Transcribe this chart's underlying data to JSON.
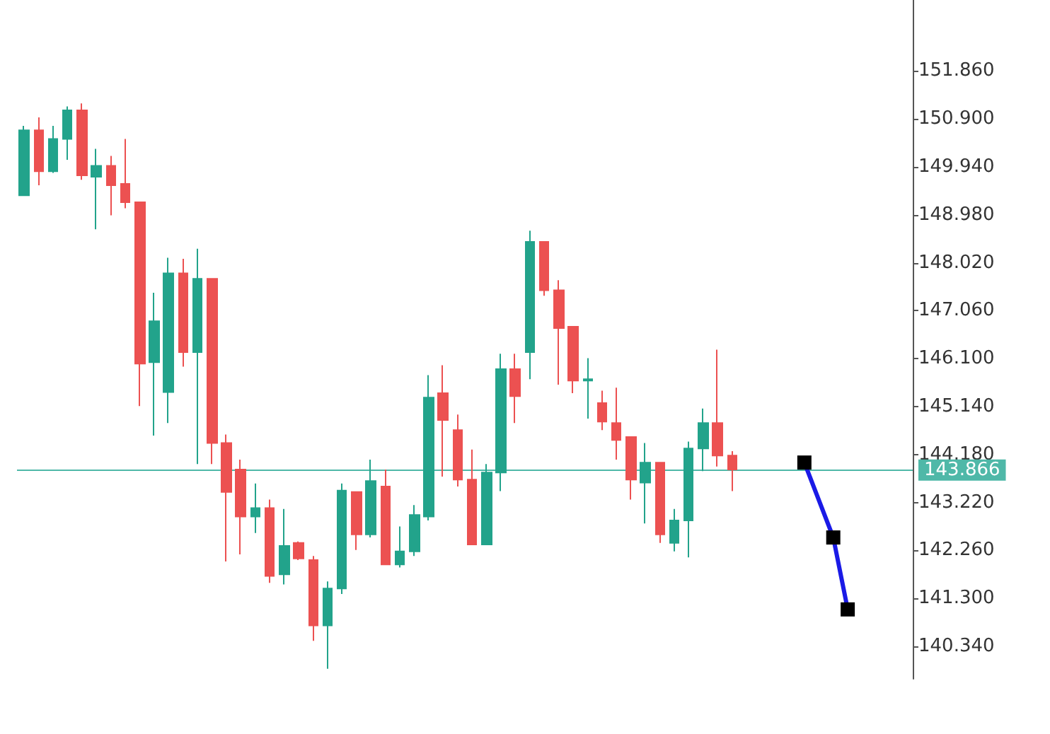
{
  "chart_data": {
    "type": "candlestick",
    "categories": [
      null,
      null,
      null,
      null,
      null,
      null,
      null,
      null,
      null,
      null,
      null,
      null,
      null,
      null,
      null,
      null,
      null,
      null,
      null,
      null,
      null,
      null,
      null,
      null,
      null,
      null,
      null,
      null,
      null,
      null,
      null,
      null,
      null,
      null,
      null,
      null,
      null,
      null,
      null,
      null,
      null,
      null,
      null,
      null,
      null,
      null,
      null,
      null,
      null,
      null,
      null,
      null,
      null,
      null,
      null,
      null,
      null,
      null,
      null,
      null,
      null,
      null
    ],
    "ohlc": [
      [
        149.37,
        150.76,
        149.37,
        150.67
      ],
      [
        150.67,
        150.93,
        149.57,
        149.85
      ],
      [
        149.85,
        150.76,
        149.82,
        150.5
      ],
      [
        150.5,
        151.15,
        150.08,
        151.07
      ],
      [
        151.07,
        151.21,
        149.68,
        149.77
      ],
      [
        149.74,
        150.3,
        148.69,
        149.96
      ],
      [
        149.96,
        150.16,
        148.97,
        149.57
      ],
      [
        149.6,
        150.5,
        149.11,
        149.23
      ],
      [
        149.23,
        149.23,
        145.15,
        146.0
      ],
      [
        146.03,
        147.42,
        144.56,
        146.85
      ],
      [
        145.43,
        148.12,
        144.81,
        147.81
      ],
      [
        147.81,
        148.1,
        145.94,
        146.23
      ],
      [
        146.23,
        148.3,
        143.99,
        147.7
      ],
      [
        147.7,
        147.7,
        143.99,
        144.41
      ],
      [
        144.41,
        144.58,
        142.04,
        143.43
      ],
      [
        143.88,
        144.08,
        142.18,
        142.94
      ],
      [
        142.94,
        143.6,
        142.61,
        143.11
      ],
      [
        143.11,
        143.28,
        141.61,
        141.75
      ],
      [
        141.78,
        143.09,
        141.58,
        142.35
      ],
      [
        142.41,
        142.44,
        142.07,
        142.1
      ],
      [
        142.07,
        142.15,
        140.45,
        140.76
      ],
      [
        140.76,
        141.64,
        139.89,
        141.5
      ],
      [
        141.5,
        143.6,
        141.39,
        143.46
      ],
      [
        143.43,
        143.43,
        142.27,
        142.58
      ],
      [
        142.58,
        144.08,
        142.52,
        143.65
      ],
      [
        143.54,
        143.88,
        141.98,
        141.98
      ],
      [
        141.98,
        142.74,
        141.92,
        142.24
      ],
      [
        142.24,
        143.17,
        142.15,
        142.97
      ],
      [
        142.94,
        145.77,
        142.86,
        145.32
      ],
      [
        145.41,
        145.97,
        143.74,
        144.87
      ],
      [
        144.67,
        144.98,
        143.54,
        143.68
      ],
      [
        143.68,
        144.28,
        142.38,
        142.38
      ],
      [
        142.38,
        143.99,
        142.38,
        143.82
      ],
      [
        143.82,
        146.2,
        143.45,
        145.89
      ],
      [
        145.89,
        146.2,
        144.81,
        145.35
      ],
      [
        146.23,
        148.66,
        145.69,
        148.44
      ],
      [
        148.44,
        148.44,
        147.36,
        147.47
      ],
      [
        147.47,
        147.67,
        145.58,
        146.71
      ],
      [
        146.74,
        146.74,
        145.41,
        145.66
      ],
      [
        145.66,
        146.11,
        144.9,
        145.69
      ],
      [
        145.21,
        145.46,
        144.67,
        144.84
      ],
      [
        144.81,
        145.52,
        144.08,
        144.47
      ],
      [
        144.53,
        144.53,
        143.28,
        143.68
      ],
      [
        143.62,
        144.41,
        142.8,
        144.02
      ],
      [
        144.02,
        144.02,
        142.41,
        142.58
      ],
      [
        142.41,
        143.09,
        142.24,
        142.86
      ],
      [
        142.86,
        144.44,
        142.12,
        144.3
      ],
      [
        144.3,
        145.1,
        143.85,
        144.81
      ],
      [
        144.81,
        146.28,
        143.94,
        144.16
      ],
      [
        144.16,
        144.25,
        143.45,
        143.88
      ],
      null,
      null,
      null,
      null,
      null,
      null,
      null,
      null,
      null,
      null,
      null,
      null
    ],
    "series": [
      {
        "type": "line",
        "color": "#1a1ae6",
        "values": [
          null,
          null,
          null,
          null,
          null,
          null,
          null,
          null,
          null,
          null,
          null,
          null,
          null,
          null,
          null,
          null,
          null,
          null,
          null,
          null,
          null,
          null,
          null,
          null,
          null,
          null,
          null,
          null,
          null,
          null,
          null,
          null,
          null,
          null,
          null,
          null,
          null,
          null,
          null,
          null,
          null,
          null,
          null,
          null,
          null,
          null,
          null,
          null,
          null,
          null,
          null,
          null,
          null,
          null,
          144.02,
          null,
          142.52,
          141.08,
          null,
          null,
          null,
          null
        ]
      }
    ],
    "marker": "square",
    "ylim": [
      139.69,
      153.28
    ],
    "yticks": [
      {
        "value": 151.86,
        "label": "151.860"
      },
      {
        "value": 150.9,
        "label": "150.900"
      },
      {
        "value": 149.94,
        "label": "149.940"
      },
      {
        "value": 148.98,
        "label": "148.980"
      },
      {
        "value": 148.02,
        "label": "148.020"
      },
      {
        "value": 147.06,
        "label": "147.060"
      },
      {
        "value": 146.1,
        "label": "146.100"
      },
      {
        "value": 145.14,
        "label": "145.140"
      },
      {
        "value": 144.18,
        "label": "144.180"
      },
      {
        "value": 143.22,
        "label": "143.220"
      },
      {
        "value": 142.26,
        "label": "142.260"
      },
      {
        "value": 141.3,
        "label": "141.300"
      },
      {
        "value": 140.34,
        "label": "140.340"
      }
    ],
    "tick_labels": "y",
    "grid": false,
    "ref_lines": [
      {
        "axis": "y",
        "value": 143.866,
        "label": "143.866",
        "color": "#4fb8a8"
      }
    ]
  }
}
